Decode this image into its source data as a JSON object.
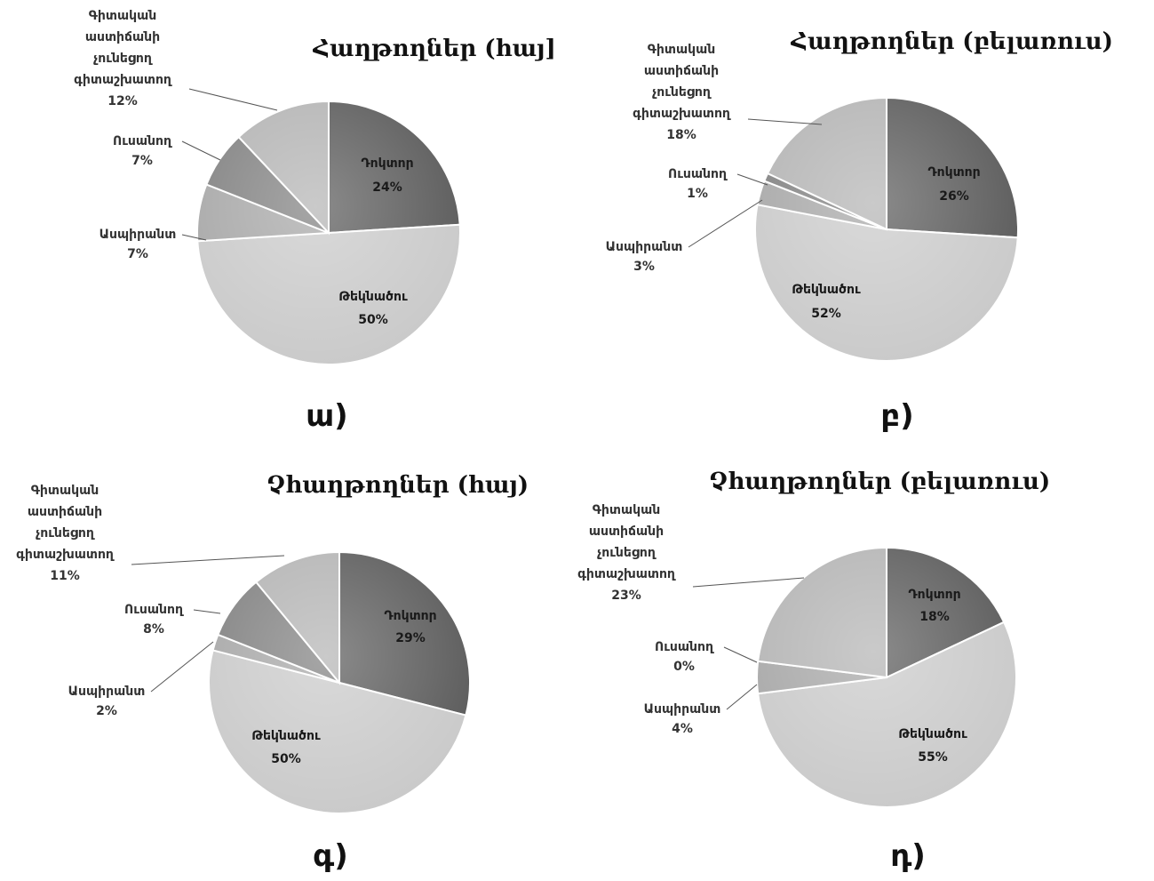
{
  "colors": {
    "doctor": "#595959",
    "candidate": "#c9c9c9",
    "assistant": "#a6a6a6",
    "student": "#808080",
    "researcher": "#b3b3b3",
    "edge": "#ffffff"
  },
  "chart_data": [
    {
      "type": "pie",
      "title": "Հաղթողներ (հայ]",
      "panel_letter": "ա)",
      "slices": [
        {
          "label": "Դոկտոր",
          "pct_label": "24%",
          "value": 24
        },
        {
          "label": "Թեկնածու",
          "pct_label": "50%",
          "value": 50
        },
        {
          "label": "Ասպիրանտ",
          "pct_label": "7%",
          "value": 7
        },
        {
          "label": "Ուսանող",
          "pct_label": "7%",
          "value": 7
        },
        {
          "label": "Գիտական աստիճանի չունեցող գիտաշխատող",
          "label_lines": [
            "Գիտական",
            "աստիճանի",
            "չունեցող",
            "գիտաշխատող"
          ],
          "pct_label": "12%",
          "value": 12
        }
      ]
    },
    {
      "type": "pie",
      "title": "Հաղթողներ (բելառուս)",
      "panel_letter": "բ)",
      "slices": [
        {
          "label": "Դոկտոր",
          "pct_label": "26%",
          "value": 26
        },
        {
          "label": "Թեկնածու",
          "pct_label": "52%",
          "value": 52
        },
        {
          "label": "Ասպիրանտ",
          "pct_label": "3%",
          "value": 3
        },
        {
          "label": "Ուսանող",
          "pct_label": "1%",
          "value": 1
        },
        {
          "label": "Գիտական աստիճանի չունեցող գիտաշխատող",
          "label_lines": [
            "Գիտական",
            "աստիճանի",
            "չունեցող",
            "գիտաշխատող"
          ],
          "pct_label": "18%",
          "value": 18
        }
      ]
    },
    {
      "type": "pie",
      "title": "Չհաղթողներ (հայ)",
      "panel_letter": "գ)",
      "slices": [
        {
          "label": "Դոկտոր",
          "pct_label": "29%",
          "value": 29
        },
        {
          "label": "Թեկնածու",
          "pct_label": "50%",
          "value": 50
        },
        {
          "label": "Ասպիրանտ",
          "pct_label": "2%",
          "value": 2
        },
        {
          "label": "Ուսանող",
          "pct_label": "8%",
          "value": 8
        },
        {
          "label": "Գիտական աստիճանի չունեցող գիտաշխատող",
          "label_lines": [
            "Գիտական",
            "աստիճանի",
            "չունեցող",
            "գիտաշխատող"
          ],
          "pct_label": "11%",
          "value": 11
        }
      ]
    },
    {
      "type": "pie",
      "title": "Չհաղթողներ (բելառուս)",
      "panel_letter": "դ)",
      "slices": [
        {
          "label": "Դոկտոր",
          "pct_label": "18%",
          "value": 18
        },
        {
          "label": "Թեկնածու",
          "pct_label": "55%",
          "value": 55
        },
        {
          "label": "Ասպիրանտ",
          "pct_label": "4%",
          "value": 4
        },
        {
          "label": "Ուսանող",
          "pct_label": "0%",
          "value": 0
        },
        {
          "label": "Գիտական աստիճանի չունեցող գիտաշխատող",
          "label_lines": [
            "Գիտական",
            "աստիճանի",
            "չունեցող",
            "գիտաշխատող"
          ],
          "pct_label": "23%",
          "value": 23
        }
      ]
    }
  ]
}
